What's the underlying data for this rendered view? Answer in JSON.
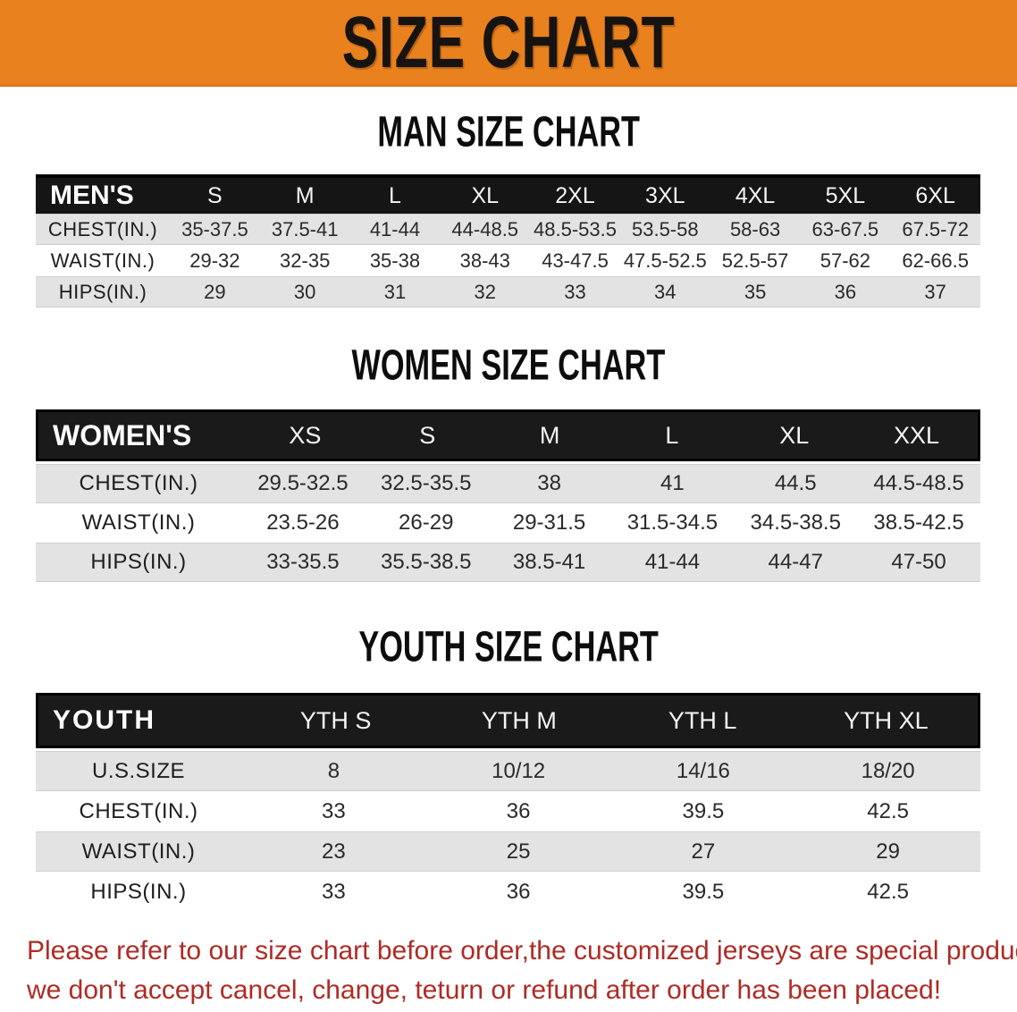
{
  "banner": {
    "title": "SIZE CHART",
    "bg_color": "#E8811E",
    "text_color": "#171310"
  },
  "sections": [
    {
      "heading": "MAN SIZE CHART",
      "table": {
        "header_label": "MEN'S",
        "columns": [
          "S",
          "M",
          "L",
          "XL",
          "2XL",
          "3XL",
          "4XL",
          "5XL",
          "6XL"
        ],
        "rows": [
          {
            "label": "CHEST(IN.)",
            "values": [
              "35-37.5",
              "37.5-41",
              "41-44",
              "44-48.5",
              "48.5-53.5",
              "53.5-58",
              "58-63",
              "63-67.5",
              "67.5-72"
            ]
          },
          {
            "label": "WAIST(IN.)",
            "values": [
              "29-32",
              "32-35",
              "35-38",
              "38-43",
              "43-47.5",
              "47.5-52.5",
              "52.5-57",
              "57-62",
              "62-66.5"
            ]
          },
          {
            "label": "HIPS(IN.)",
            "values": [
              "29",
              "30",
              "31",
              "32",
              "33",
              "34",
              "35",
              "36",
              "37"
            ]
          }
        ]
      }
    },
    {
      "heading": "WOMEN SIZE CHART",
      "table": {
        "header_label": "WOMEN'S",
        "columns": [
          "XS",
          "S",
          "M",
          "L",
          "XL",
          "XXL"
        ],
        "rows": [
          {
            "label": "CHEST(IN.)",
            "values": [
              "29.5-32.5",
              "32.5-35.5",
              "38",
              "41",
              "44.5",
              "44.5-48.5"
            ]
          },
          {
            "label": "WAIST(IN.)",
            "values": [
              "23.5-26",
              "26-29",
              "29-31.5",
              "31.5-34.5",
              "34.5-38.5",
              "38.5-42.5"
            ]
          },
          {
            "label": "HIPS(IN.)",
            "values": [
              "33-35.5",
              "35.5-38.5",
              "38.5-41",
              "41-44",
              "44-47",
              "47-50"
            ]
          }
        ]
      }
    },
    {
      "heading": "YOUTH SIZE CHART",
      "table": {
        "header_label": "YOUTH",
        "columns": [
          "YTH S",
          "YTH M",
          "YTH L",
          "YTH XL"
        ],
        "rows": [
          {
            "label": "U.S.SIZE",
            "values": [
              "8",
              "10/12",
              "14/16",
              "18/20"
            ]
          },
          {
            "label": "CHEST(IN.)",
            "values": [
              "33",
              "36",
              "39.5",
              "42.5"
            ]
          },
          {
            "label": "WAIST(IN.)",
            "values": [
              "23",
              "25",
              "27",
              "29"
            ]
          },
          {
            "label": "HIPS(IN.)",
            "values": [
              "33",
              "36",
              "39.5",
              "42.5"
            ]
          }
        ]
      }
    }
  ],
  "footer": {
    "line1": "Please refer to our size chart before order,the customized jerseys are special products,",
    "line2": "we don't accept cancel, change, teturn or refund after order has been placed!",
    "text_color": "#AE2B25"
  }
}
